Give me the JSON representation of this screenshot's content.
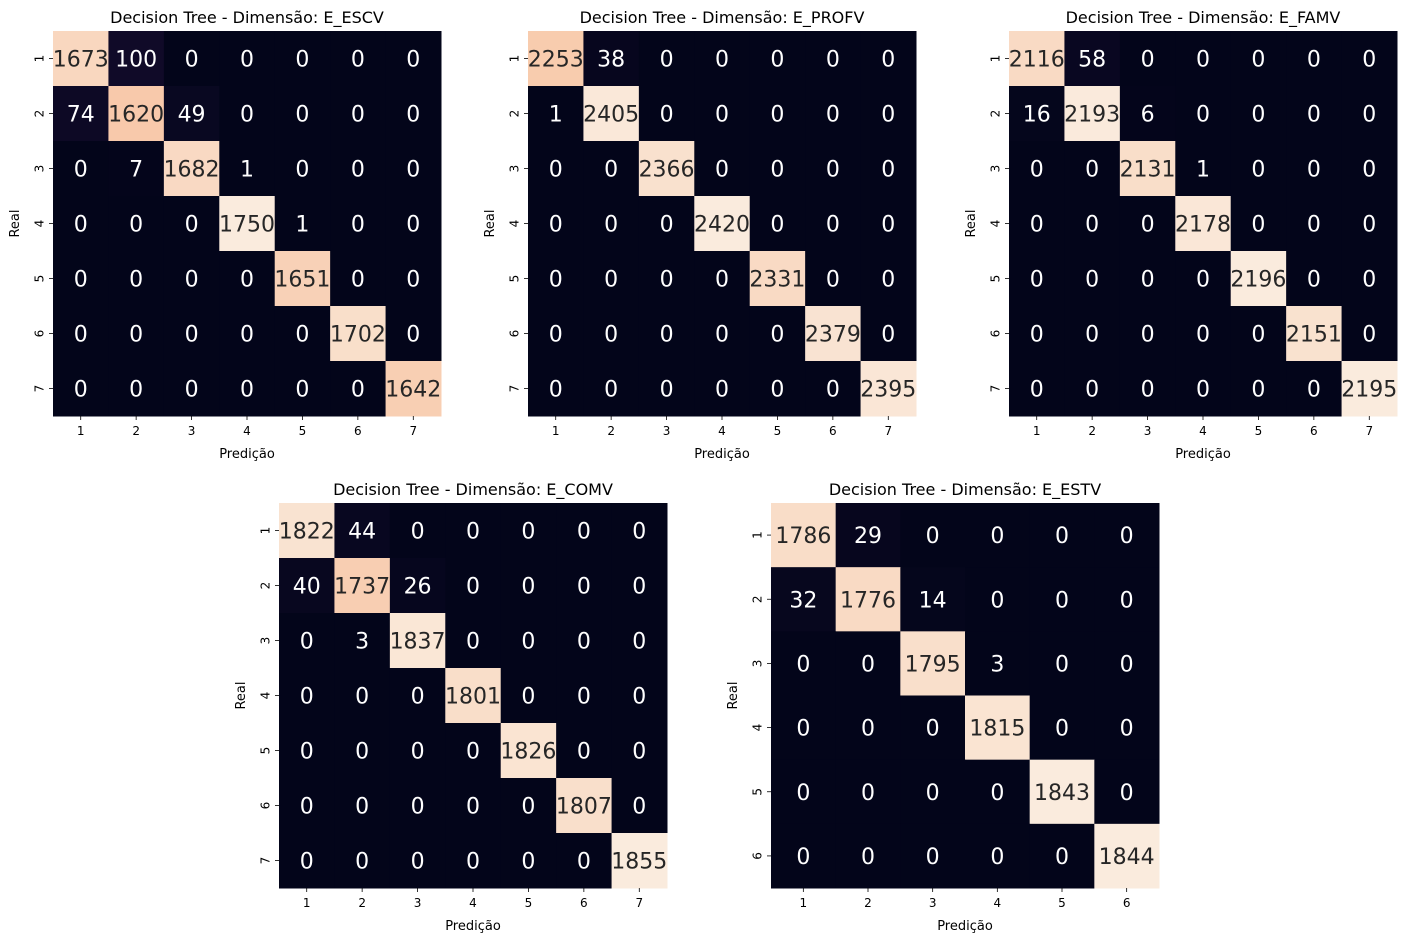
{
  "chart_data": [
    {
      "type": "heatmap",
      "title": "Decision Tree - Dimensão:  E_ESCV",
      "xlabel": "Predição",
      "ylabel": "Real",
      "labels": [
        "1",
        "2",
        "3",
        "4",
        "5",
        "6",
        "7"
      ],
      "matrix": [
        [
          1673,
          100,
          0,
          0,
          0,
          0,
          0
        ],
        [
          74,
          1620,
          49,
          0,
          0,
          0,
          0
        ],
        [
          0,
          7,
          1682,
          1,
          0,
          0,
          0
        ],
        [
          0,
          0,
          0,
          1750,
          1,
          0,
          0
        ],
        [
          0,
          0,
          0,
          0,
          1651,
          0,
          0
        ],
        [
          0,
          0,
          0,
          0,
          0,
          1702,
          0
        ],
        [
          0,
          0,
          0,
          0,
          0,
          0,
          1642
        ]
      ],
      "colorbar": false
    },
    {
      "type": "heatmap",
      "title": "Decision Tree - Dimensão:  E_PROFV",
      "xlabel": "Predição",
      "ylabel": "Real",
      "labels": [
        "1",
        "2",
        "3",
        "4",
        "5",
        "6",
        "7"
      ],
      "matrix": [
        [
          2253,
          38,
          0,
          0,
          0,
          0,
          0
        ],
        [
          1,
          2405,
          0,
          0,
          0,
          0,
          0
        ],
        [
          0,
          0,
          2366,
          0,
          0,
          0,
          0
        ],
        [
          0,
          0,
          0,
          2420,
          0,
          0,
          0
        ],
        [
          0,
          0,
          0,
          0,
          2331,
          0,
          0
        ],
        [
          0,
          0,
          0,
          0,
          0,
          2379,
          0
        ],
        [
          0,
          0,
          0,
          0,
          0,
          0,
          2395
        ]
      ],
      "colorbar": false
    },
    {
      "type": "heatmap",
      "title": "Decision Tree - Dimensão:  E_FAMV",
      "xlabel": "Predição",
      "ylabel": "Real",
      "labels": [
        "1",
        "2",
        "3",
        "4",
        "5",
        "6",
        "7"
      ],
      "matrix": [
        [
          2116,
          58,
          0,
          0,
          0,
          0,
          0
        ],
        [
          16,
          2193,
          6,
          0,
          0,
          0,
          0
        ],
        [
          0,
          0,
          2131,
          1,
          0,
          0,
          0
        ],
        [
          0,
          0,
          0,
          2178,
          0,
          0,
          0
        ],
        [
          0,
          0,
          0,
          0,
          2196,
          0,
          0
        ],
        [
          0,
          0,
          0,
          0,
          0,
          2151,
          0
        ],
        [
          0,
          0,
          0,
          0,
          0,
          0,
          2195
        ]
      ],
      "colorbar": false
    },
    {
      "type": "heatmap",
      "title": "Decision Tree - Dimensão:  E_COMV",
      "xlabel": "Predição",
      "ylabel": "Real",
      "labels": [
        "1",
        "2",
        "3",
        "4",
        "5",
        "6",
        "7"
      ],
      "matrix": [
        [
          1822,
          44,
          0,
          0,
          0,
          0,
          0
        ],
        [
          40,
          1737,
          26,
          0,
          0,
          0,
          0
        ],
        [
          0,
          3,
          1837,
          0,
          0,
          0,
          0
        ],
        [
          0,
          0,
          0,
          1801,
          0,
          0,
          0
        ],
        [
          0,
          0,
          0,
          0,
          1826,
          0,
          0
        ],
        [
          0,
          0,
          0,
          0,
          0,
          1807,
          0
        ],
        [
          0,
          0,
          0,
          0,
          0,
          0,
          1855
        ]
      ],
      "colorbar": false
    },
    {
      "type": "heatmap",
      "title": "Decision Tree - Dimensão:  E_ESTV",
      "xlabel": "Predição",
      "ylabel": "Real",
      "labels": [
        "1",
        "2",
        "3",
        "4",
        "5",
        "6"
      ],
      "matrix": [
        [
          1786,
          29,
          0,
          0,
          0,
          0
        ],
        [
          32,
          1776,
          14,
          0,
          0,
          0
        ],
        [
          0,
          0,
          1795,
          3,
          0,
          0
        ],
        [
          0,
          0,
          0,
          1815,
          0,
          0
        ],
        [
          0,
          0,
          0,
          0,
          1843,
          0
        ],
        [
          0,
          0,
          0,
          0,
          0,
          1844
        ]
      ],
      "colorbar": false
    }
  ]
}
